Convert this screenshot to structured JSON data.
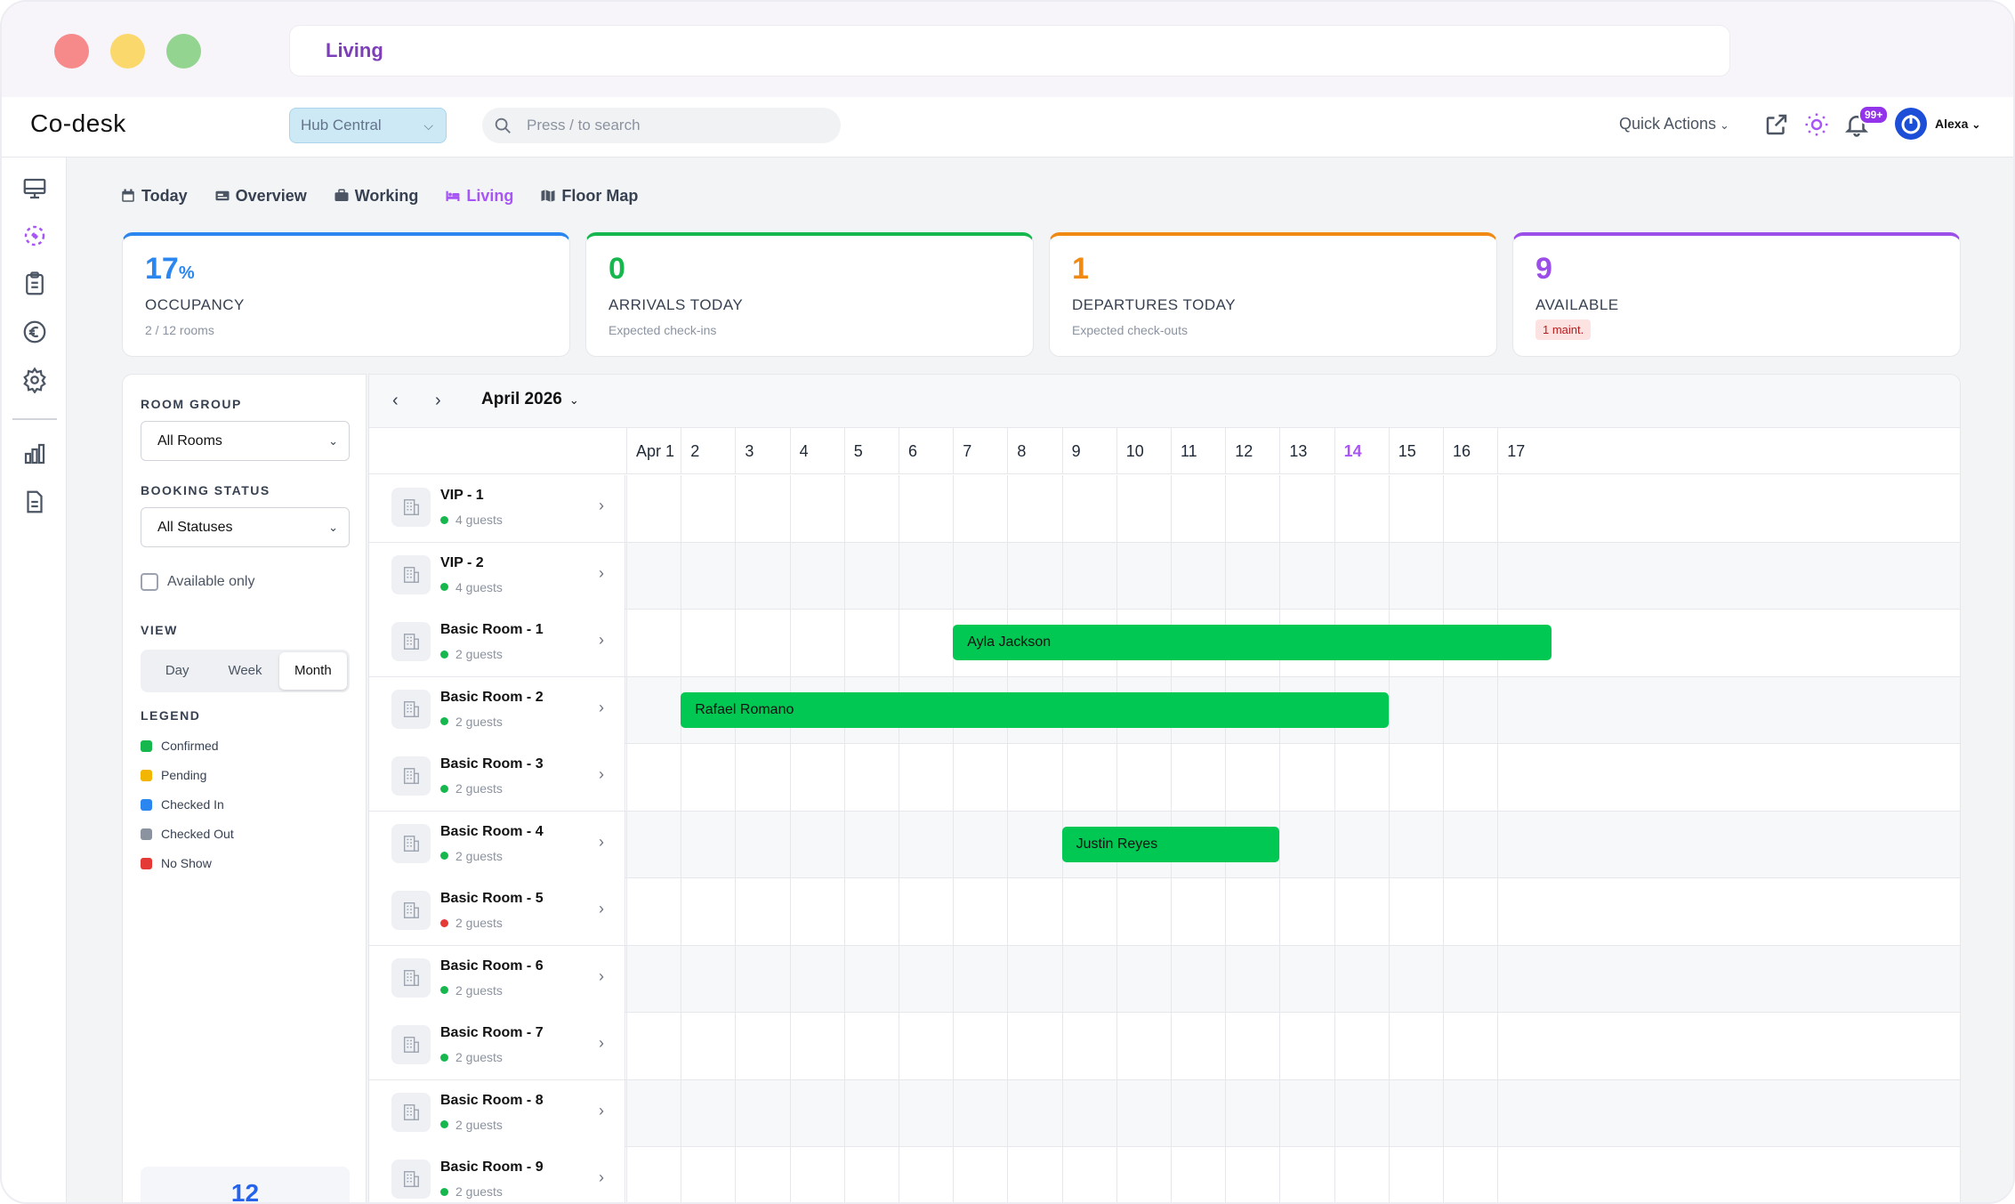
{
  "window": {
    "url_title": "Living"
  },
  "topnav": {
    "logo": "Co-desk",
    "hub_select": "Hub Central",
    "search_placeholder": "Press / to search",
    "quick_actions": "Quick Actions",
    "notifications_badge": "99+",
    "user_name": "Alexa"
  },
  "rail": {
    "icons": [
      "monitor-icon",
      "spinner-icon",
      "clipboard-icon",
      "euro-icon",
      "gear-icon",
      "bar-chart-icon",
      "document-icon"
    ]
  },
  "tabs": [
    {
      "label": "Today",
      "icon": "calendar-icon"
    },
    {
      "label": "Overview",
      "icon": "card-icon"
    },
    {
      "label": "Working",
      "icon": "briefcase-icon"
    },
    {
      "label": "Living",
      "icon": "bed-icon"
    },
    {
      "label": "Floor Map",
      "icon": "map-icon"
    }
  ],
  "stats": [
    {
      "value": "17",
      "unit": "%",
      "label": "OCCUPANCY",
      "sub": "2 / 12 rooms",
      "color": "#2b86f0"
    },
    {
      "value": "0",
      "label": "ARRIVALS TODAY",
      "sub": "Expected check-ins",
      "color": "#16b84d"
    },
    {
      "value": "1",
      "label": "DEPARTURES TODAY",
      "sub": "Expected check-outs",
      "color": "#f08a12"
    },
    {
      "value": "9",
      "label": "AVAILABLE",
      "badge": "1 maint.",
      "color": "#9b4ee8"
    }
  ],
  "filters": {
    "room_group_label": "ROOM GROUP",
    "room_group_value": "All Rooms",
    "booking_status_label": "BOOKING STATUS",
    "booking_status_value": "All Statuses",
    "available_only": "Available only",
    "view_label": "VIEW",
    "view_options": [
      "Day",
      "Week",
      "Month"
    ],
    "view_selected": "Month",
    "legend_label": "LEGEND",
    "legend": [
      {
        "label": "Confirmed",
        "color": "#16b84d"
      },
      {
        "label": "Pending",
        "color": "#f2b600"
      },
      {
        "label": "Checked In",
        "color": "#2b86f0"
      },
      {
        "label": "Checked Out",
        "color": "#8b93a0"
      },
      {
        "label": "No Show",
        "color": "#e53935"
      }
    ],
    "total_count": "12"
  },
  "calendar": {
    "month": "April 2026",
    "days": [
      "Apr 1",
      "2",
      "3",
      "4",
      "5",
      "6",
      "7",
      "8",
      "9",
      "10",
      "11",
      "12",
      "13",
      "14",
      "15",
      "16",
      "17"
    ],
    "today": "14",
    "rooms": [
      {
        "name": "VIP - 1",
        "guests": "4 guests",
        "status_color": "#16b84d"
      },
      {
        "name": "VIP - 2",
        "guests": "4 guests",
        "status_color": "#16b84d"
      },
      {
        "name": "Basic Room - 1",
        "guests": "2 guests",
        "status_color": "#16b84d"
      },
      {
        "name": "Basic Room - 2",
        "guests": "2 guests",
        "status_color": "#16b84d"
      },
      {
        "name": "Basic Room - 3",
        "guests": "2 guests",
        "status_color": "#16b84d"
      },
      {
        "name": "Basic Room - 4",
        "guests": "2 guests",
        "status_color": "#16b84d"
      },
      {
        "name": "Basic Room - 5",
        "guests": "2 guests",
        "status_color": "#e53935"
      },
      {
        "name": "Basic Room - 6",
        "guests": "2 guests",
        "status_color": "#16b84d"
      },
      {
        "name": "Basic Room - 7",
        "guests": "2 guests",
        "status_color": "#16b84d"
      },
      {
        "name": "Basic Room - 8",
        "guests": "2 guests",
        "status_color": "#16b84d"
      },
      {
        "name": "Basic Room - 9",
        "guests": "2 guests",
        "status_color": "#16b84d"
      }
    ],
    "bookings": [
      {
        "guest": "Ayla Jackson",
        "room_index": 2,
        "start_day": 7,
        "end_day": 18
      },
      {
        "guest": "Rafael Romano",
        "room_index": 3,
        "start_day": 2,
        "end_day": 15
      },
      {
        "guest": "Justin Reyes",
        "room_index": 5,
        "start_day": 9,
        "end_day": 13
      }
    ]
  }
}
